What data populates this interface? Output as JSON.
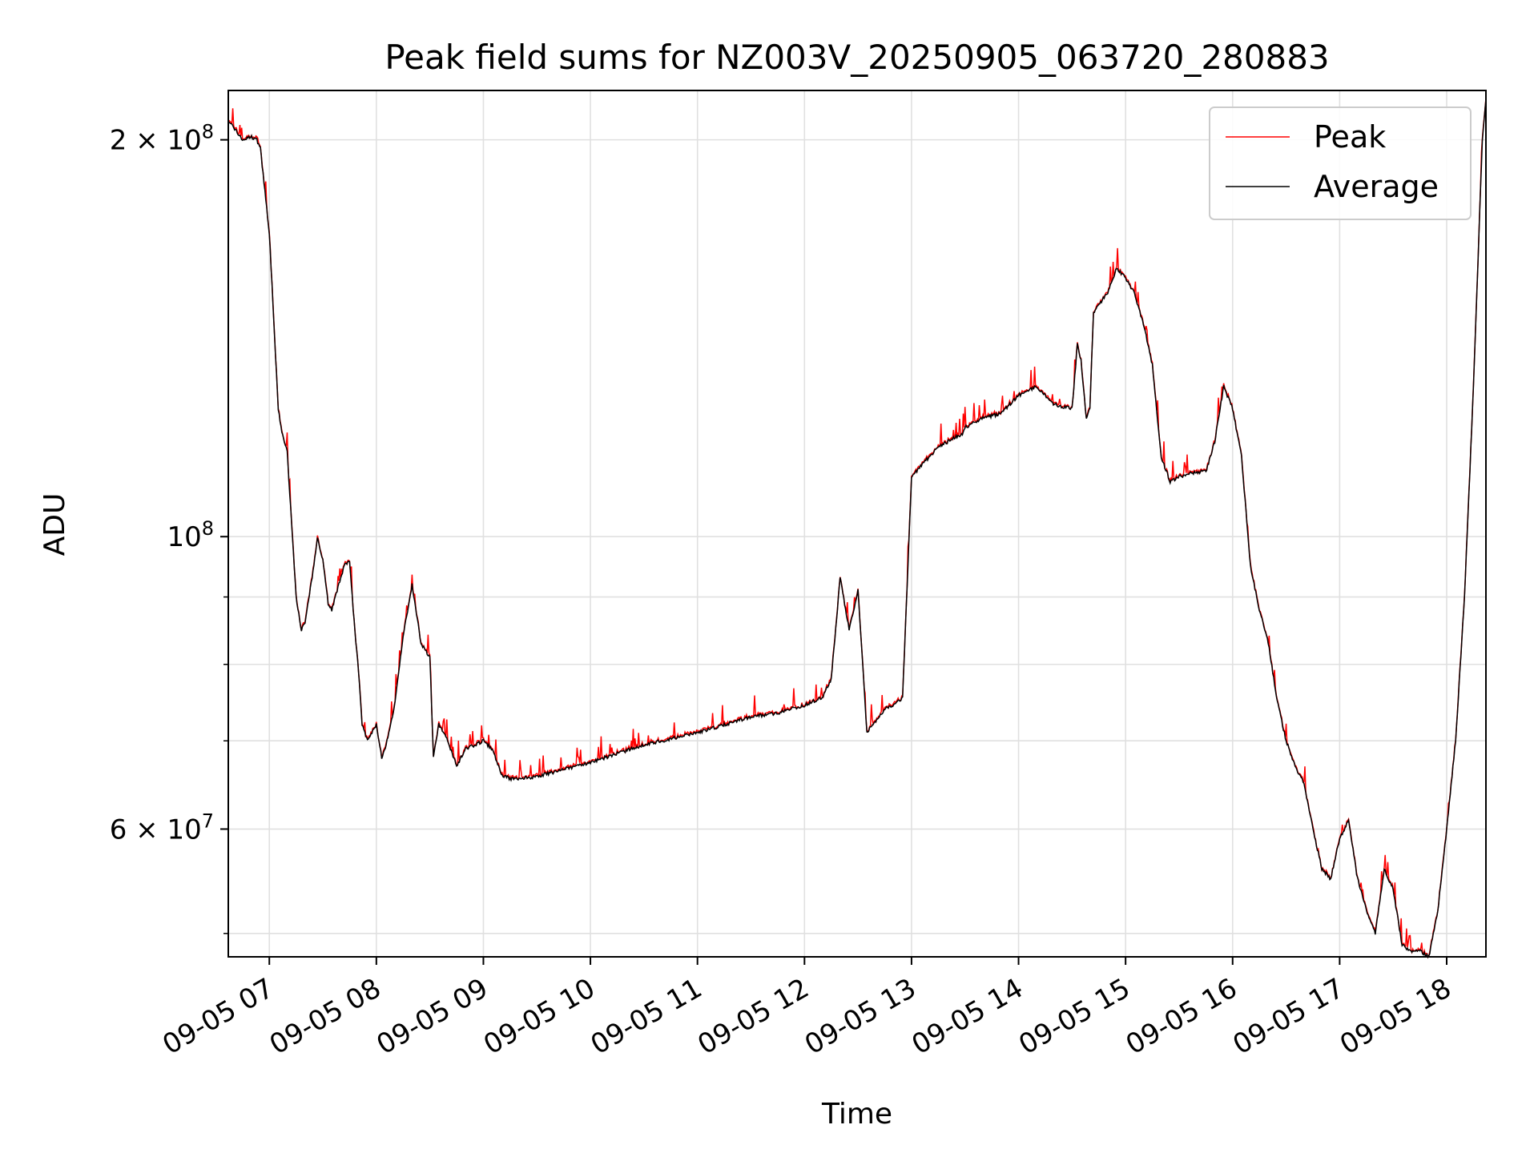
{
  "chart_data": {
    "type": "line",
    "title": "Peak field sums for NZ003V_20250905_063720_280883",
    "xlabel": "Time",
    "ylabel": "ADU",
    "yscale": "log",
    "ylim": [
      48000000,
      218000000
    ],
    "xlim_hours": [
      "2025-09-05 06:37",
      "2025-09-05 18:22"
    ],
    "grid": true,
    "legend_position": "top-right",
    "x_tick_labels": [
      "09-05 07",
      "09-05 08",
      "09-05 09",
      "09-05 10",
      "09-05 11",
      "09-05 12",
      "09-05 13",
      "09-05 14",
      "09-05 15",
      "09-05 16",
      "09-05 17",
      "09-05 18"
    ],
    "y_tick_labels": [
      {
        "value": 200000000,
        "mant": "2",
        "exp": "8"
      },
      {
        "value": 100000000,
        "mant": "",
        "exp": "8"
      },
      {
        "value": 60000000,
        "mant": "6",
        "exp": "7"
      }
    ],
    "y_minor_ticks": [
      50000000,
      70000000,
      80000000,
      90000000
    ],
    "series": [
      {
        "name": "Peak",
        "color": "#ff0000"
      },
      {
        "name": "Average",
        "color": "#000000"
      }
    ],
    "x": [
      "06:37",
      "06:45",
      "06:50",
      "06:53",
      "06:55",
      "07:00",
      "07:05",
      "07:07",
      "07:10",
      "07:12",
      "07:15",
      "07:18",
      "07:20",
      "07:25",
      "07:27",
      "07:30",
      "07:33",
      "07:35",
      "07:40",
      "07:42",
      "07:45",
      "07:47",
      "07:50",
      "07:52",
      "07:55",
      "08:00",
      "08:03",
      "08:05",
      "08:10",
      "08:15",
      "08:20",
      "08:25",
      "08:30",
      "08:32",
      "08:35",
      "08:40",
      "08:45",
      "08:50",
      "09:00",
      "09:05",
      "09:10",
      "09:15",
      "09:20",
      "09:30",
      "09:40",
      "10:00",
      "10:30",
      "11:00",
      "11:30",
      "11:45",
      "12:00",
      "12:10",
      "12:15",
      "12:20",
      "12:25",
      "12:30",
      "12:35",
      "12:45",
      "12:50",
      "12:55",
      "13:00",
      "13:05",
      "13:10",
      "13:15",
      "13:20",
      "13:25",
      "13:28",
      "13:29",
      "13:30",
      "13:40",
      "13:50",
      "14:00",
      "14:10",
      "14:20",
      "14:30",
      "14:33",
      "14:35",
      "14:38",
      "14:40",
      "14:42",
      "14:45",
      "14:50",
      "14:55",
      "15:00",
      "15:05",
      "15:10",
      "15:15",
      "15:20",
      "15:25",
      "15:30",
      "15:35",
      "15:40",
      "15:45",
      "15:50",
      "15:55",
      "16:00",
      "16:05",
      "16:10",
      "16:15",
      "16:20",
      "16:25",
      "16:30",
      "16:35",
      "16:40",
      "16:45",
      "16:50",
      "16:55",
      "17:00",
      "17:05",
      "17:10",
      "17:15",
      "17:20",
      "17:25",
      "17:30",
      "17:35",
      "17:40",
      "17:45",
      "17:50",
      "17:55",
      "18:00",
      "18:05",
      "18:10",
      "18:15",
      "18:20",
      "18:22"
    ],
    "values": [
      207000000,
      200000000,
      201000000,
      200000000,
      197000000,
      170000000,
      125000000,
      120000000,
      116000000,
      105000000,
      90000000,
      85000000,
      86000000,
      95000000,
      100000000,
      96000000,
      89000000,
      88000000,
      93000000,
      95000000,
      96000000,
      88000000,
      79000000,
      72000000,
      70000000,
      72000000,
      68000000,
      69000000,
      74000000,
      84000000,
      92000000,
      83000000,
      81000000,
      68000000,
      72000000,
      70000000,
      67000000,
      69000000,
      70000000,
      69000000,
      66000000,
      65500000,
      65500000,
      65800000,
      66300000,
      67400000,
      69500000,
      71000000,
      73000000,
      73500000,
      74500000,
      75500000,
      78000000,
      93000000,
      85000000,
      91000000,
      71000000,
      74000000,
      74500000,
      75500000,
      111000000,
      113000000,
      115000000,
      117000000,
      118000000,
      119000000,
      119500000,
      120000000,
      121000000,
      123000000,
      124000000,
      128000000,
      130000000,
      126000000,
      125000000,
      140000000,
      136000000,
      123000000,
      125000000,
      148000000,
      150000000,
      153000000,
      160000000,
      157000000,
      153000000,
      145000000,
      135000000,
      115000000,
      110000000,
      111000000,
      111500000,
      112000000,
      112000000,
      118000000,
      130000000,
      125000000,
      115000000,
      95000000,
      88000000,
      83000000,
      75000000,
      70000000,
      67000000,
      65000000,
      60000000,
      56000000,
      55000000,
      59000000,
      61000000,
      55000000,
      52000000,
      50000000,
      56000000,
      54000000,
      49000000,
      48500000,
      48500000,
      48000000,
      52000000,
      60000000,
      70000000,
      90000000,
      130000000,
      200000000,
      215000000
    ]
  }
}
